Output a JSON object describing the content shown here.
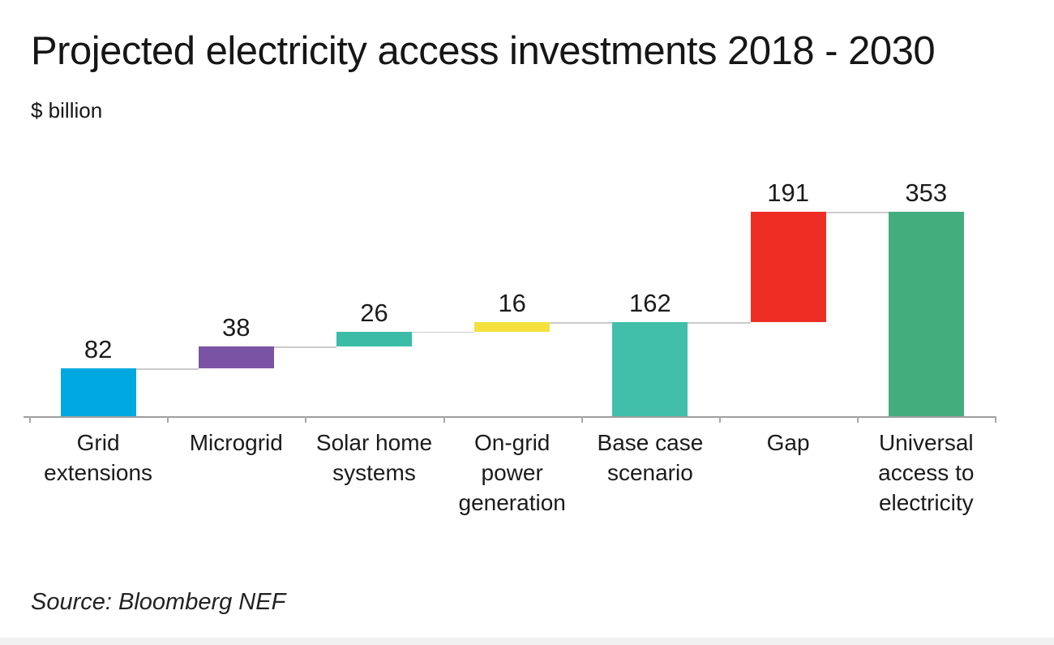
{
  "header": {
    "title": "Projected electricity access investments 2018 - 2030",
    "unit_label": "$ billion"
  },
  "chart_data": {
    "type": "bar",
    "subtype": "waterfall",
    "title": "Projected electricity access investments 2018 - 2030",
    "ylabel": "$ billion",
    "xlabel": "",
    "grid": "off",
    "legend": "none",
    "ylim": [
      0,
      353
    ],
    "categories": [
      "Grid\nextensions",
      "Microgrid",
      "Solar home\nsystems",
      "On-grid\npower\ngeneration",
      "Base case\nscenario",
      "Gap",
      "Universal\naccess to\nelectricity"
    ],
    "values": [
      82,
      38,
      26,
      16,
      162,
      191,
      353
    ],
    "data_labels": [
      "82",
      "38",
      "26",
      "16",
      "162",
      "191",
      "353"
    ],
    "segment_start": [
      0,
      82,
      120,
      146,
      0,
      162,
      0
    ],
    "segment_end": [
      82,
      120,
      146,
      162,
      162,
      353,
      353
    ],
    "bar_roles": [
      "increase",
      "increase",
      "increase",
      "increase",
      "subtotal",
      "increase",
      "total"
    ],
    "bar_colors": [
      "#00a8e1",
      "#7b53a5",
      "#3abca6",
      "#f4e13d",
      "#41bfab",
      "#ee2e24",
      "#44ad7d"
    ],
    "connector_color": "#cbcbcb",
    "axis_color": "#9e9e9e",
    "tick_color": "#a6a6a6"
  },
  "footer": {
    "source": "Source: Bloomberg NEF"
  }
}
